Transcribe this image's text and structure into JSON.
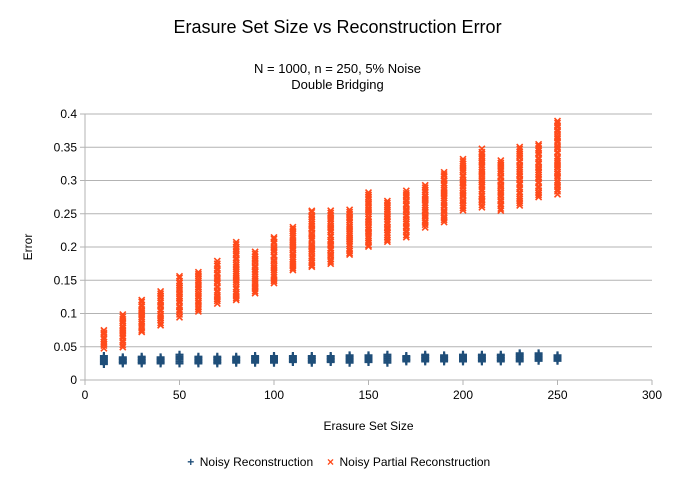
{
  "chart_data": {
    "type": "scatter",
    "title": "Erasure Set Size vs Reconstruction Error",
    "subtitle_lines": [
      "N = 1000, n = 250, 5% Noise",
      "Double Bridging"
    ],
    "xlabel": "Erasure Set Size",
    "ylabel": "Error",
    "xlim": [
      0,
      300
    ],
    "ylim": [
      0,
      0.4
    ],
    "xticks": [
      0,
      50,
      100,
      150,
      200,
      250,
      300
    ],
    "yticks": [
      0,
      0.05,
      0.1,
      0.15,
      0.2,
      0.25,
      0.3,
      0.35,
      0.4
    ],
    "ytick_labels": [
      "0",
      "0.05",
      "0.1",
      "0.15",
      "0.2",
      "0.25",
      "0.3",
      "0.35",
      "0.4"
    ],
    "grid": "horizontal",
    "legend_position": "bottom",
    "series": [
      {
        "name": "Noisy Reconstruction",
        "marker": "plus",
        "color": "#1f4e79",
        "points": [
          {
            "x": 10,
            "min": 0.024,
            "max": 0.036
          },
          {
            "x": 20,
            "min": 0.025,
            "max": 0.034
          },
          {
            "x": 30,
            "min": 0.025,
            "max": 0.035
          },
          {
            "x": 40,
            "min": 0.025,
            "max": 0.034
          },
          {
            "x": 50,
            "min": 0.025,
            "max": 0.038
          },
          {
            "x": 60,
            "min": 0.025,
            "max": 0.035
          },
          {
            "x": 70,
            "min": 0.025,
            "max": 0.035
          },
          {
            "x": 80,
            "min": 0.026,
            "max": 0.035
          },
          {
            "x": 90,
            "min": 0.026,
            "max": 0.036
          },
          {
            "x": 100,
            "min": 0.026,
            "max": 0.036
          },
          {
            "x": 110,
            "min": 0.027,
            "max": 0.036
          },
          {
            "x": 120,
            "min": 0.026,
            "max": 0.036
          },
          {
            "x": 130,
            "min": 0.027,
            "max": 0.036
          },
          {
            "x": 140,
            "min": 0.026,
            "max": 0.037
          },
          {
            "x": 150,
            "min": 0.027,
            "max": 0.037
          },
          {
            "x": 160,
            "min": 0.026,
            "max": 0.038
          },
          {
            "x": 170,
            "min": 0.028,
            "max": 0.036
          },
          {
            "x": 180,
            "min": 0.028,
            "max": 0.038
          },
          {
            "x": 190,
            "min": 0.028,
            "max": 0.037
          },
          {
            "x": 200,
            "min": 0.028,
            "max": 0.038
          },
          {
            "x": 210,
            "min": 0.028,
            "max": 0.038
          },
          {
            "x": 220,
            "min": 0.028,
            "max": 0.038
          },
          {
            "x": 230,
            "min": 0.028,
            "max": 0.04
          },
          {
            "x": 240,
            "min": 0.029,
            "max": 0.04
          },
          {
            "x": 250,
            "min": 0.029,
            "max": 0.037
          }
        ]
      },
      {
        "name": "Noisy Partial Reconstruction",
        "marker": "x",
        "color": "#ff4a1a",
        "points": [
          {
            "x": 10,
            "min": 0.048,
            "max": 0.075
          },
          {
            "x": 20,
            "min": 0.05,
            "max": 0.098
          },
          {
            "x": 30,
            "min": 0.072,
            "max": 0.12
          },
          {
            "x": 40,
            "min": 0.083,
            "max": 0.133
          },
          {
            "x": 50,
            "min": 0.095,
            "max": 0.156
          },
          {
            "x": 60,
            "min": 0.103,
            "max": 0.163
          },
          {
            "x": 70,
            "min": 0.115,
            "max": 0.178
          },
          {
            "x": 80,
            "min": 0.12,
            "max": 0.207
          },
          {
            "x": 90,
            "min": 0.13,
            "max": 0.192
          },
          {
            "x": 100,
            "min": 0.145,
            "max": 0.215
          },
          {
            "x": 110,
            "min": 0.165,
            "max": 0.23
          },
          {
            "x": 120,
            "min": 0.17,
            "max": 0.255
          },
          {
            "x": 130,
            "min": 0.175,
            "max": 0.255
          },
          {
            "x": 140,
            "min": 0.188,
            "max": 0.256
          },
          {
            "x": 150,
            "min": 0.2,
            "max": 0.282
          },
          {
            "x": 160,
            "min": 0.208,
            "max": 0.27
          },
          {
            "x": 170,
            "min": 0.215,
            "max": 0.285
          },
          {
            "x": 180,
            "min": 0.23,
            "max": 0.292
          },
          {
            "x": 190,
            "min": 0.237,
            "max": 0.312
          },
          {
            "x": 200,
            "min": 0.255,
            "max": 0.332
          },
          {
            "x": 210,
            "min": 0.26,
            "max": 0.347
          },
          {
            "x": 220,
            "min": 0.255,
            "max": 0.33
          },
          {
            "x": 230,
            "min": 0.263,
            "max": 0.35
          },
          {
            "x": 240,
            "min": 0.275,
            "max": 0.355
          },
          {
            "x": 250,
            "min": 0.28,
            "max": 0.39
          }
        ]
      }
    ]
  }
}
